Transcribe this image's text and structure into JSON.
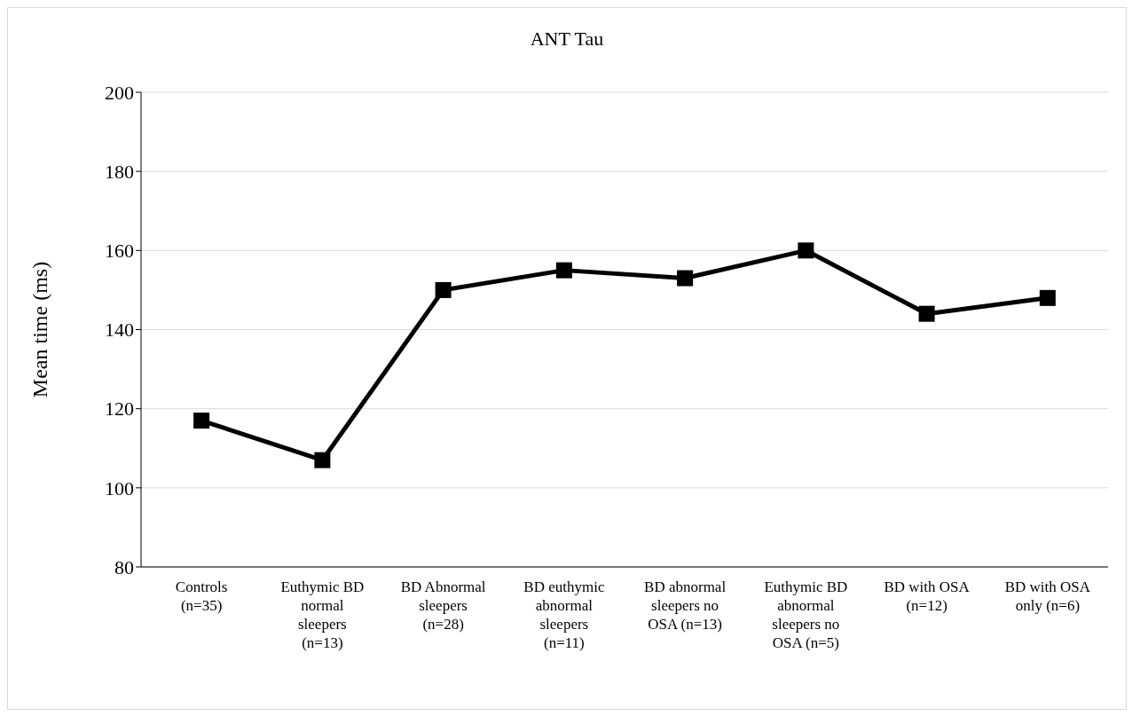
{
  "chart_data": {
    "type": "line",
    "title": "ANT Tau",
    "ylabel": "Mean time (ms)",
    "categories": [
      "Controls (n=35)",
      "Euthymic BD normal sleepers (n=13)",
      "BD Abnormal sleepers (n=28)",
      "BD euthymic abnormal sleepers (n=11)",
      "BD abnormal sleepers no OSA (n=13)",
      "Euthymic BD abnormal sleepers no OSA (n=5)",
      "BD with OSA (n=12)",
      "BD with OSA only (n=6)"
    ],
    "series": [
      {
        "color": "#000000",
        "values": [
          117,
          107,
          150,
          155,
          153,
          160,
          144,
          148
        ]
      }
    ],
    "ylim": [
      80,
      200
    ],
    "yticks": [
      80,
      100,
      120,
      140,
      160,
      180,
      200
    ],
    "grid": "y",
    "legend": false,
    "marker": "square",
    "line_style": "solid"
  }
}
